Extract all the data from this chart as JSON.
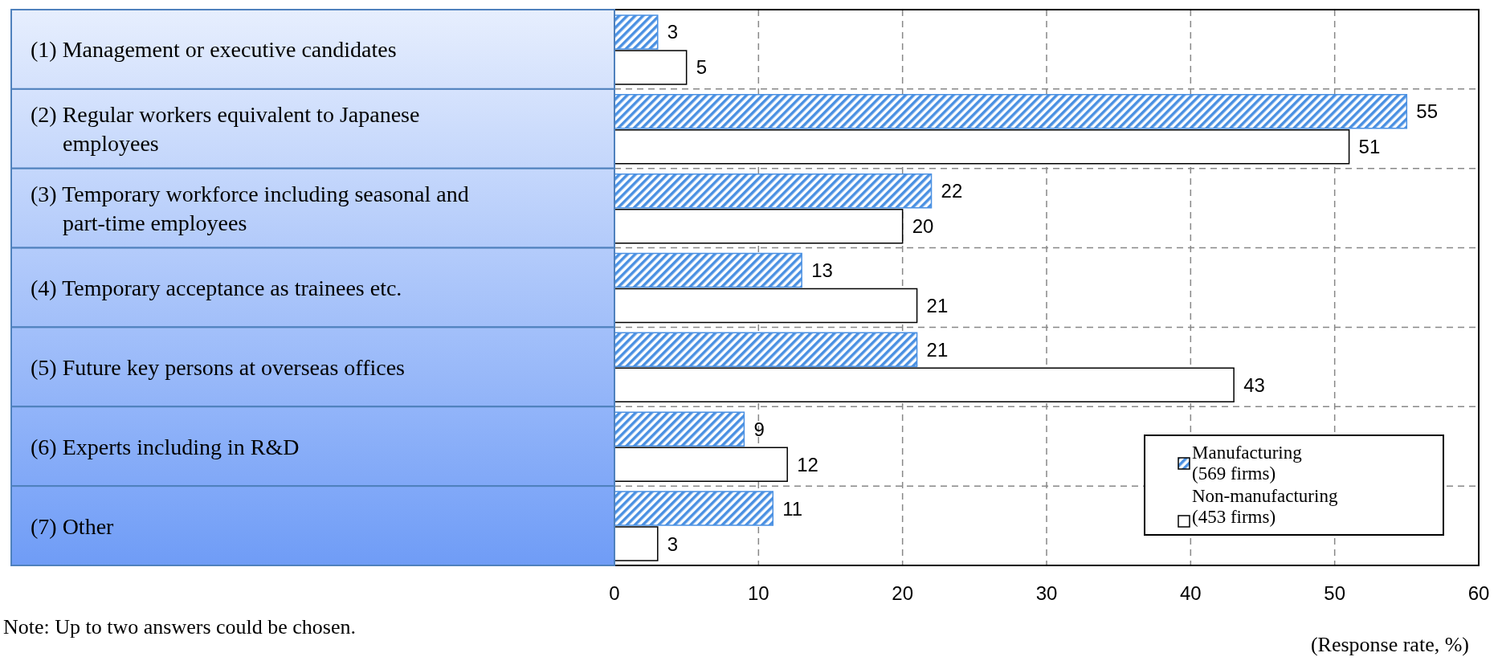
{
  "chart_data": {
    "type": "bar",
    "orientation": "horizontal",
    "categories": [
      "(1) Management or executive candidates",
      "(2) Regular workers equivalent to Japanese employees",
      "(3) Temporary workforce including seasonal and part-time employees",
      "(4) Temporary acceptance as trainees etc.",
      "(5) Future key persons at overseas offices",
      "(6) Experts including in R&D",
      "(7) Other"
    ],
    "series": [
      {
        "name": "Manufacturing (569 firms)",
        "color": "#4a90e2",
        "values": [
          3,
          55,
          22,
          13,
          21,
          9,
          11
        ]
      },
      {
        "name": "Non-manufacturing (453 firms)",
        "color": "#ffffff",
        "values": [
          5,
          51,
          20,
          21,
          43,
          12,
          3
        ]
      }
    ],
    "xlim": [
      0,
      60
    ],
    "xticks": [
      0,
      10,
      20,
      30,
      40,
      50,
      60
    ],
    "xlabel": "(Response rate, %)",
    "annotations": [
      "Note: Up to two answers could be chosen."
    ],
    "grid": true,
    "legend": "bottom right",
    "data_labels": true
  }
}
